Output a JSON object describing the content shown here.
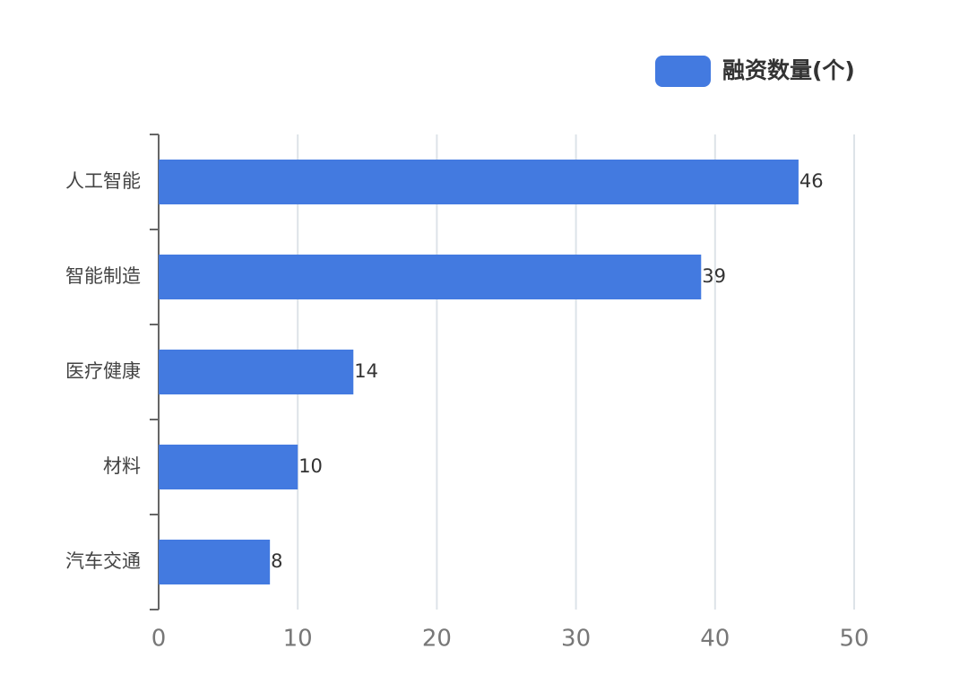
{
  "chart_data": {
    "type": "bar",
    "orientation": "horizontal",
    "categories": [
      "人工智能",
      "智能制造",
      "医疗健康",
      "材料",
      "汽车交通"
    ],
    "series": [
      {
        "name": "融资数量(个)",
        "color": "#437ae0",
        "values": [
          46,
          39,
          14,
          10,
          8
        ]
      }
    ],
    "xlim": [
      0,
      50
    ],
    "xticks": [
      0,
      10,
      20,
      30,
      40,
      50
    ],
    "grid": true,
    "legend": "top-right",
    "value_labels_shown": true
  }
}
